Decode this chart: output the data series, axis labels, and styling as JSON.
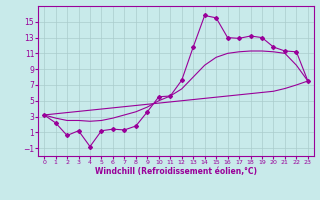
{
  "xlabel": "Windchill (Refroidissement éolien,°C)",
  "x": [
    0,
    1,
    2,
    3,
    4,
    5,
    6,
    7,
    8,
    9,
    10,
    11,
    12,
    13,
    14,
    15,
    16,
    17,
    18,
    19,
    20,
    21,
    22,
    23
  ],
  "line1": [
    3.2,
    2.2,
    0.6,
    1.2,
    -0.8,
    1.2,
    1.4,
    1.3,
    1.8,
    3.6,
    5.5,
    5.6,
    7.6,
    11.8,
    15.8,
    15.5,
    13.0,
    12.9,
    13.2,
    13.0,
    11.8,
    11.3,
    11.2,
    7.5
  ],
  "line2": [
    3.2,
    2.8,
    2.5,
    2.5,
    2.4,
    2.5,
    2.8,
    3.2,
    3.6,
    4.2,
    5.0,
    5.6,
    6.5,
    8.0,
    9.5,
    10.5,
    11.0,
    11.2,
    11.3,
    11.3,
    11.2,
    11.0,
    9.5,
    7.5
  ],
  "line3": [
    3.2,
    3.35,
    3.5,
    3.65,
    3.8,
    3.95,
    4.1,
    4.25,
    4.4,
    4.55,
    4.7,
    4.85,
    5.0,
    5.15,
    5.3,
    5.45,
    5.6,
    5.75,
    5.9,
    6.05,
    6.2,
    6.55,
    7.0,
    7.5
  ],
  "bg_color": "#c8eaea",
  "line_color": "#990099",
  "grid_color": "#aacccc",
  "ylim": [
    -2,
    17
  ],
  "yticks": [
    -1,
    1,
    3,
    5,
    7,
    9,
    11,
    13,
    15
  ],
  "xlim": [
    -0.5,
    23.5
  ],
  "xticks": [
    0,
    1,
    2,
    3,
    4,
    5,
    6,
    7,
    8,
    9,
    10,
    11,
    12,
    13,
    14,
    15,
    16,
    17,
    18,
    19,
    20,
    21,
    22,
    23
  ]
}
